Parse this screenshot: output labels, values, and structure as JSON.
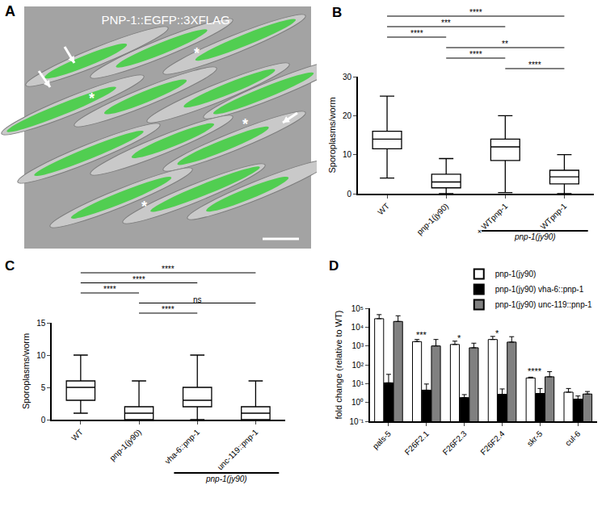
{
  "image_panel": {
    "label": "A",
    "title": "PNP-1::EGFP::3XFLAG",
    "marks": [
      "*",
      "*",
      "*",
      "*"
    ]
  },
  "chart_data": [
    {
      "type": "box",
      "annotations": [
        "B"
      ],
      "ylabel": "Sporoplasms/worm",
      "categories": [
        "WT",
        "pnp-1(jy90)",
        "+ WTpnp-1",
        "- WTpnp-1"
      ],
      "boxes": [
        {
          "min": 4,
          "q1": 11.5,
          "median": 14,
          "q3": 16,
          "max": 25
        },
        {
          "min": 0,
          "q1": 1.5,
          "median": 3,
          "q3": 5,
          "max": 9
        },
        {
          "min": 0.3,
          "q1": 8.5,
          "median": 12,
          "q3": 14,
          "max": 20
        },
        {
          "min": 0,
          "q1": 2.5,
          "median": 4.3,
          "q3": 6,
          "max": 10
        }
      ],
      "ylim": [
        0,
        30
      ],
      "yticks": [
        0,
        10,
        20,
        30
      ],
      "comparisons": [
        {
          "groups": [
            "WT",
            "- WTpnp-1"
          ],
          "label": "****"
        },
        {
          "groups": [
            "WT",
            "+ WTpnp-1"
          ],
          "label": "***"
        },
        {
          "groups": [
            "WT",
            "pnp-1(jy90)"
          ],
          "label": "****"
        },
        {
          "groups": [
            "pnp-1(jy90)",
            "- WTpnp-1"
          ],
          "label": "**"
        },
        {
          "groups": [
            "pnp-1(jy90)",
            "+ WTpnp-1"
          ],
          "label": "****"
        },
        {
          "groups": [
            "+ WTpnp-1",
            "- WTpnp-1"
          ],
          "label": "****"
        }
      ],
      "group": {
        "label": "pnp-1(jy90)",
        "categories": [
          "+ WTpnp-1",
          "- WTpnp-1"
        ]
      }
    },
    {
      "type": "box",
      "annotations": [
        "C"
      ],
      "ylabel": "Sporoplasms/worm",
      "categories": [
        "WT",
        "pnp-1(jy90)",
        "vha-6::pnp-1",
        "unc-119::pnp-1"
      ],
      "boxes": [
        {
          "min": 1,
          "q1": 3,
          "median": 5,
          "q3": 6,
          "max": 10
        },
        {
          "min": 0,
          "q1": 0,
          "median": 1,
          "q3": 2,
          "max": 6
        },
        {
          "min": 0,
          "q1": 2,
          "median": 3,
          "q3": 5,
          "max": 10
        },
        {
          "min": 0,
          "q1": 0,
          "median": 1,
          "q3": 2,
          "max": 6
        }
      ],
      "ylim": [
        0,
        15
      ],
      "yticks": [
        0,
        5,
        10,
        15
      ],
      "comparisons": [
        {
          "groups": [
            "WT",
            "unc-119::pnp-1"
          ],
          "label": "****"
        },
        {
          "groups": [
            "WT",
            "vha-6::pnp-1"
          ],
          "label": "****"
        },
        {
          "groups": [
            "WT",
            "pnp-1(jy90)"
          ],
          "label": "****"
        },
        {
          "groups": [
            "pnp-1(jy90)",
            "unc-119::pnp-1"
          ],
          "label": "ns"
        },
        {
          "groups": [
            "pnp-1(jy90)",
            "vha-6::pnp-1"
          ],
          "label": "****"
        }
      ],
      "group": {
        "label": "pnp-1(jy90)",
        "categories": [
          "vha-6::pnp-1",
          "unc-119::pnp-1"
        ]
      }
    },
    {
      "type": "bar",
      "annotations": [
        "D"
      ],
      "ylabel": "fold change (relative to WT)",
      "categories": [
        "pals-5",
        "F26F2.1",
        "F26F2.3",
        "F26F2.4",
        "skr-5",
        "cul-6"
      ],
      "series": [
        {
          "name": "pnp-1(jy90)",
          "color": "#ffffff",
          "values": [
            28000,
            1700,
            1200,
            2200,
            20,
            3.5
          ],
          "errors": [
            18000,
            500,
            600,
            1000,
            2,
            2
          ]
        },
        {
          "name": "pnp-1(jy90) vha-6::pnp-1",
          "color": "#000000",
          "values": [
            11,
            4.5,
            1.8,
            2.7,
            3,
            1.5
          ],
          "errors": [
            20,
            5,
            0.8,
            2.5,
            2.5,
            0.7
          ]
        },
        {
          "name": "pnp-1(jy90) unc-119::pnp-1",
          "color": "#808080",
          "values": [
            20000,
            1000,
            800,
            1600,
            23,
            2.8
          ],
          "errors": [
            20000,
            1200,
            600,
            1500,
            20,
            1
          ]
        }
      ],
      "log": "y",
      "ylim": [
        0.1,
        100000
      ],
      "yticks": [
        {
          "value": 0.1,
          "label": "10⁻¹"
        },
        {
          "value": 1,
          "label": "10⁰"
        },
        {
          "value": 10,
          "label": "10¹"
        },
        {
          "value": 100,
          "label": "10²"
        },
        {
          "value": 1000,
          "label": "10³"
        },
        {
          "value": 10000,
          "label": "10⁴"
        },
        {
          "value": 100000,
          "label": "10⁵"
        }
      ],
      "significance": [
        {
          "category": "F26F2.1",
          "label": "***"
        },
        {
          "category": "F26F2.3",
          "label": "*"
        },
        {
          "category": "F26F2.4",
          "label": "*"
        },
        {
          "category": "skr-5",
          "label": "****"
        }
      ],
      "legend": "top right"
    }
  ]
}
